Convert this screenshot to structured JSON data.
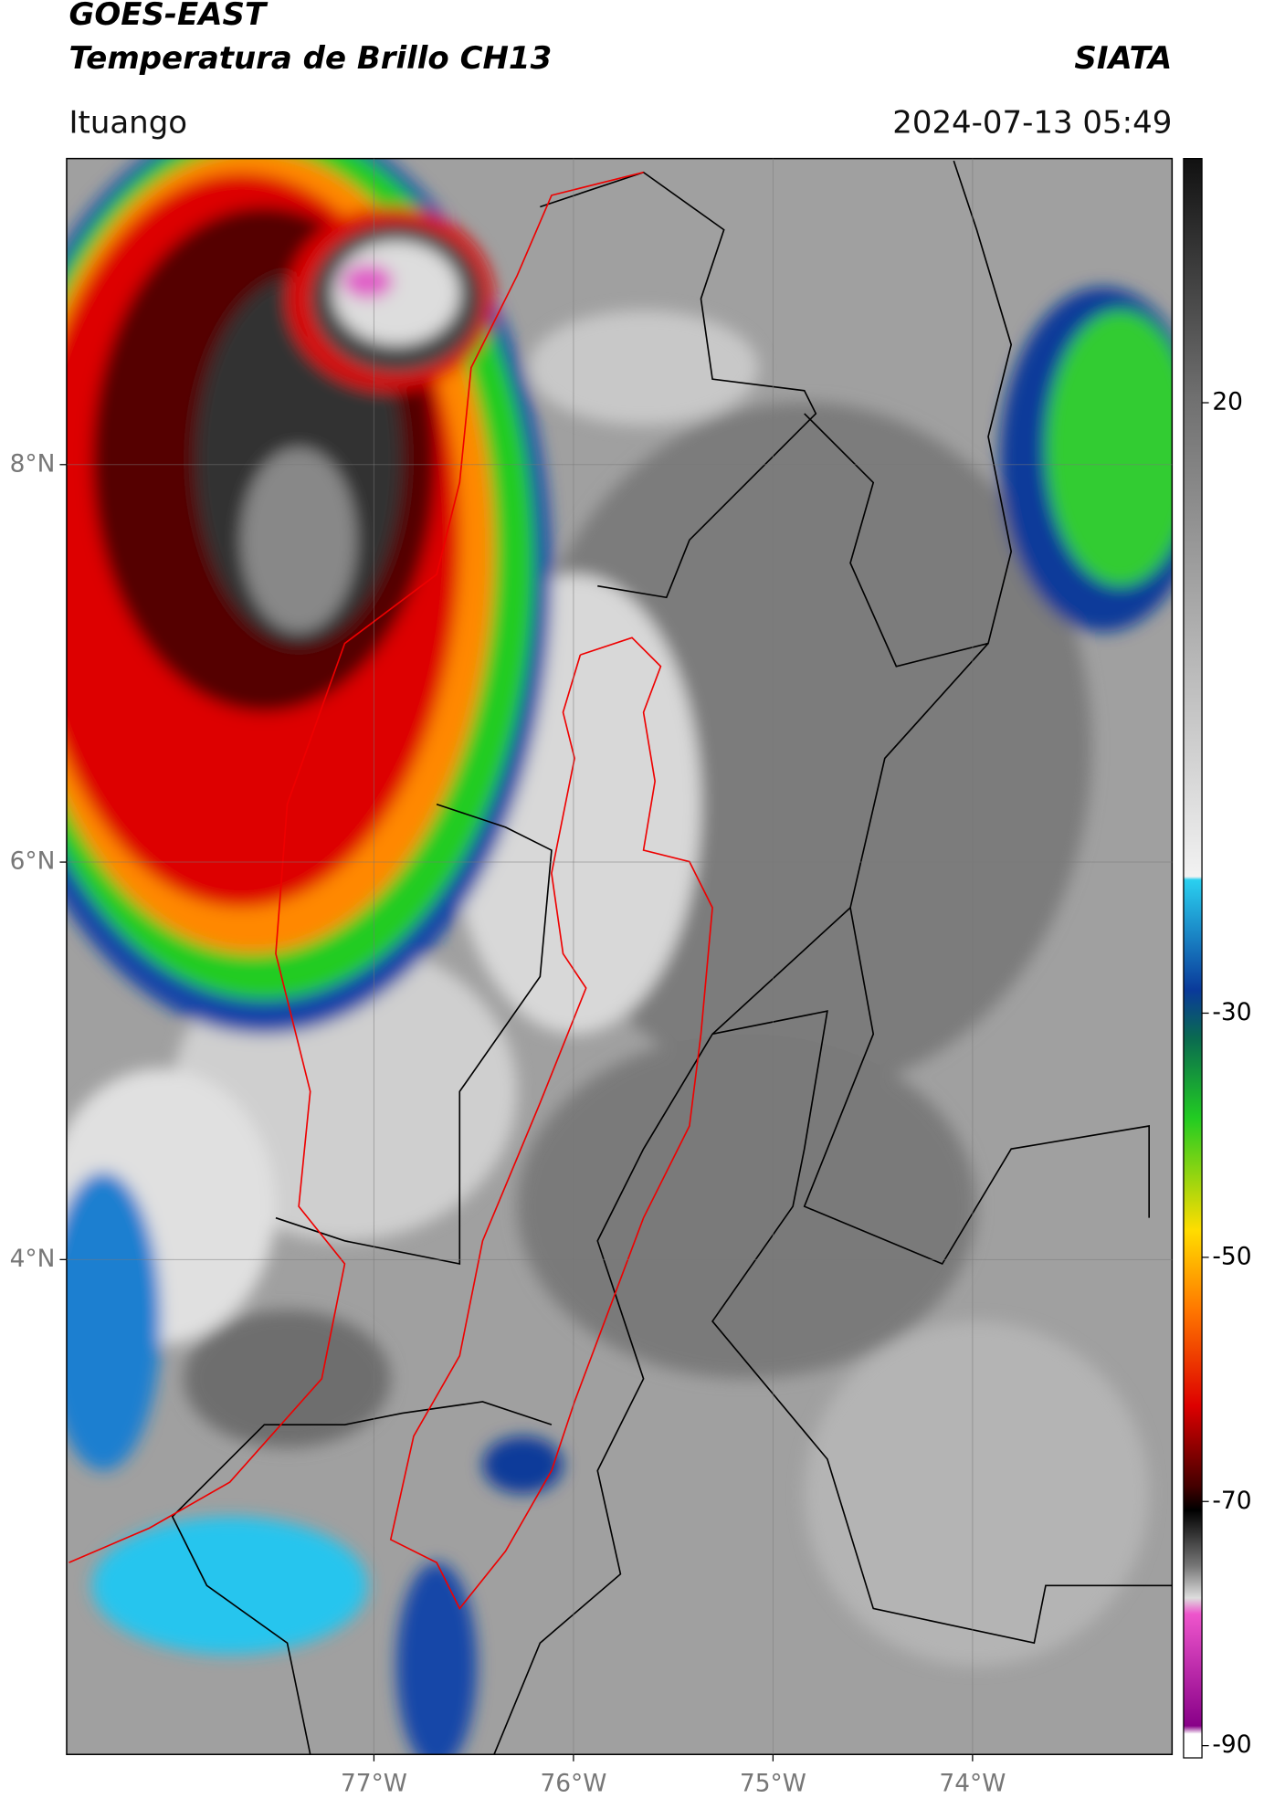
{
  "header": {
    "title": "GOES-EAST",
    "subtitle": "Temperatura de Brillo CH13",
    "source": "SIATA",
    "location": "Ituango",
    "datetime": "2024-07-13 05:49"
  },
  "map": {
    "xlim": [
      -78.54,
      -73.0
    ],
    "ylim": [
      1.51,
      9.54
    ],
    "xticks": [
      {
        "value": -77,
        "label": "77°W"
      },
      {
        "value": -76,
        "label": "76°W"
      },
      {
        "value": -75,
        "label": "75°W"
      },
      {
        "value": -74,
        "label": "74°W"
      }
    ],
    "yticks": [
      {
        "value": 8,
        "label": "8°N"
      },
      {
        "value": 6,
        "label": "6°N"
      },
      {
        "value": 4,
        "label": "4°N"
      }
    ],
    "grid": true
  },
  "colorbar": {
    "lim": [
      -91,
      40
    ],
    "ticks": [
      20,
      -30,
      -50,
      -70,
      -90
    ]
  }
}
